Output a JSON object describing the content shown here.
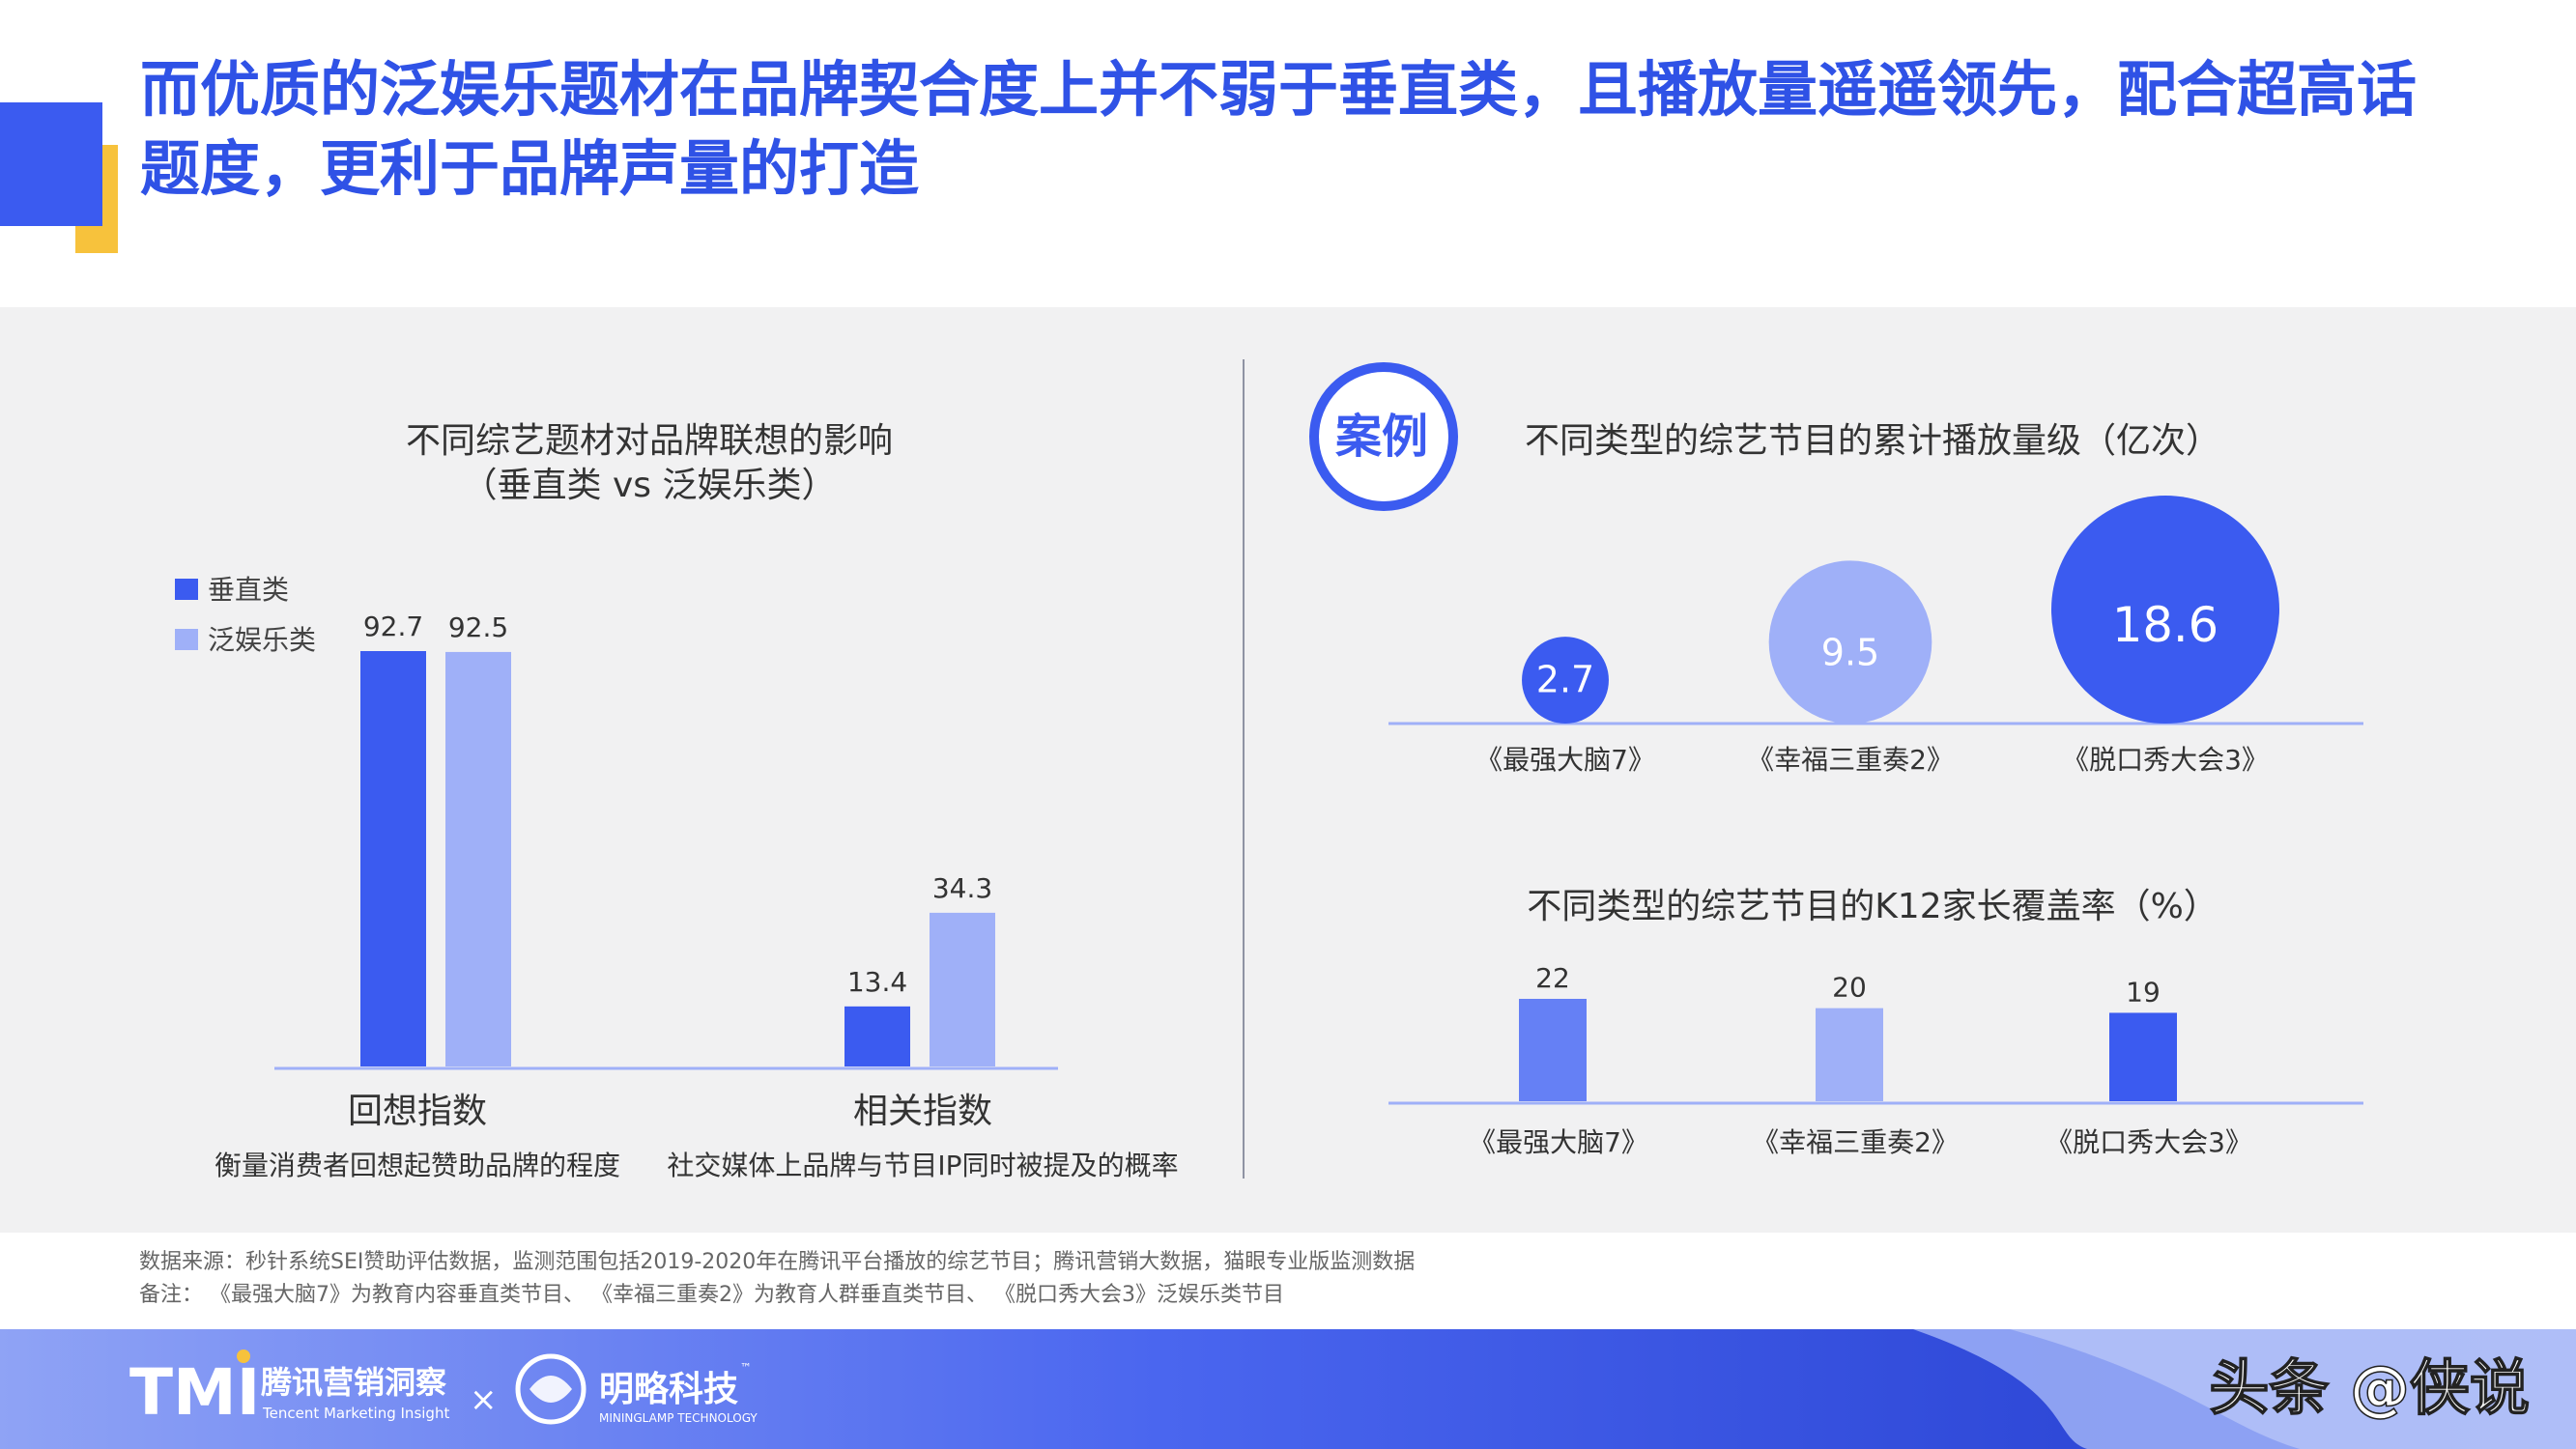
{
  "title": "而优质的泛娱乐题材在品牌契合度上并不弱于垂直类，且播放量遥遥领先，配合超高话题度，更利于品牌声量的打造",
  "colors": {
    "primary": "#3b5bf0",
    "light": "#9fb0f8",
    "mid": "#6580f5",
    "yellow": "#f7c23c",
    "panel": "#f1f1f2"
  },
  "case_badge": "案例",
  "chart_data": [
    {
      "type": "bar",
      "title": "不同综艺题材对品牌联想的影响",
      "subtitle": "（垂直类 vs 泛娱乐类）",
      "categories": [
        "回想指数",
        "相关指数"
      ],
      "category_notes": [
        "衡量消费者回想起赞助品牌的程度",
        "社交媒体上品牌与节目IP同时被提及的概率"
      ],
      "series": [
        {
          "name": "垂直类",
          "values": [
            92.7,
            13.4
          ],
          "color": "#3b5bf0"
        },
        {
          "name": "泛娱乐类",
          "values": [
            92.5,
            34.3
          ],
          "color": "#9fb0f8"
        }
      ],
      "ylim": [
        0,
        100
      ],
      "legend": "top-left"
    },
    {
      "type": "scatter",
      "title": "不同类型的综艺节目的累计播放量级（亿次）",
      "categories": [
        "《最强大脑7》",
        "《幸福三重奏2》",
        "《脱口秀大会3》"
      ],
      "values": [
        2.7,
        9.5,
        18.6
      ],
      "colors": [
        "#3b5bf0",
        "#9fb0f8",
        "#3b5bf0"
      ]
    },
    {
      "type": "bar",
      "title": "不同类型的综艺节目的K12家长覆盖率（%）",
      "categories": [
        "《最强大脑7》",
        "《幸福三重奏2》",
        "《脱口秀大会3》"
      ],
      "values": [
        22,
        20,
        19
      ],
      "colors": [
        "#6580f5",
        "#9fb0f8",
        "#3b5bf0"
      ],
      "ylim": [
        0,
        30
      ]
    }
  ],
  "notes": {
    "source": "数据来源：秒针系统SEI赞助评估数据，监测范围包括2019-2020年在腾讯平台播放的综艺节目；腾讯营销大数据，猫眼专业版监测数据",
    "remark": "备注：  《最强大脑7》为教育内容垂直类节目、 《幸福三重奏2》为教育人群垂直类节目、 《脱口秀大会3》泛娱乐类节目"
  },
  "footer": {
    "tmi_logo": "TMI",
    "tmi_cn": "腾讯营销洞察",
    "tmi_en": "Tencent Marketing Insight",
    "times": "×",
    "ml_cn": "明略科技",
    "ml_tm": "™",
    "ml_en": "MININGLAMP TECHNOLOGY",
    "watermark": "头条 @侠说"
  }
}
